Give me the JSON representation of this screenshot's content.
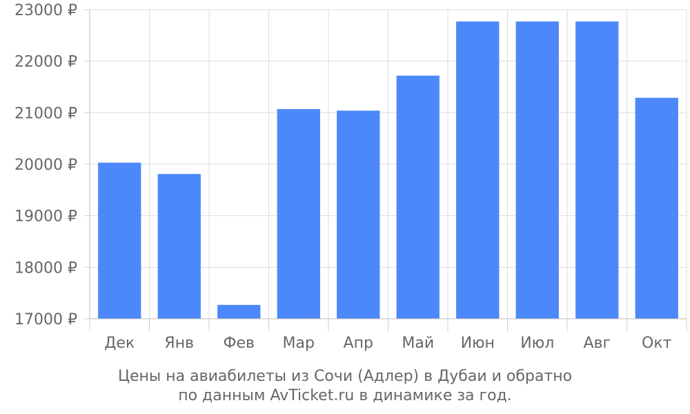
{
  "chart_data": {
    "type": "bar",
    "categories": [
      "Дек",
      "Янв",
      "Фев",
      "Мар",
      "Апр",
      "Май",
      "Июн",
      "Июл",
      "Авг",
      "Окт"
    ],
    "values": [
      20030,
      19810,
      17270,
      21070,
      21040,
      21720,
      22770,
      22770,
      22770,
      21290
    ],
    "ylim": [
      17000,
      23000
    ],
    "yticks": [
      17000,
      18000,
      19000,
      20000,
      21000,
      22000,
      23000
    ],
    "ytick_suffix": " ₽",
    "grid": true,
    "bar_color": "#4d88fa",
    "caption_lines": [
      "Цены на авиабилеты из Сочи (Адлер) в Дубаи и обратно",
      "по данным AvTicket.ru в динамике за год."
    ]
  }
}
